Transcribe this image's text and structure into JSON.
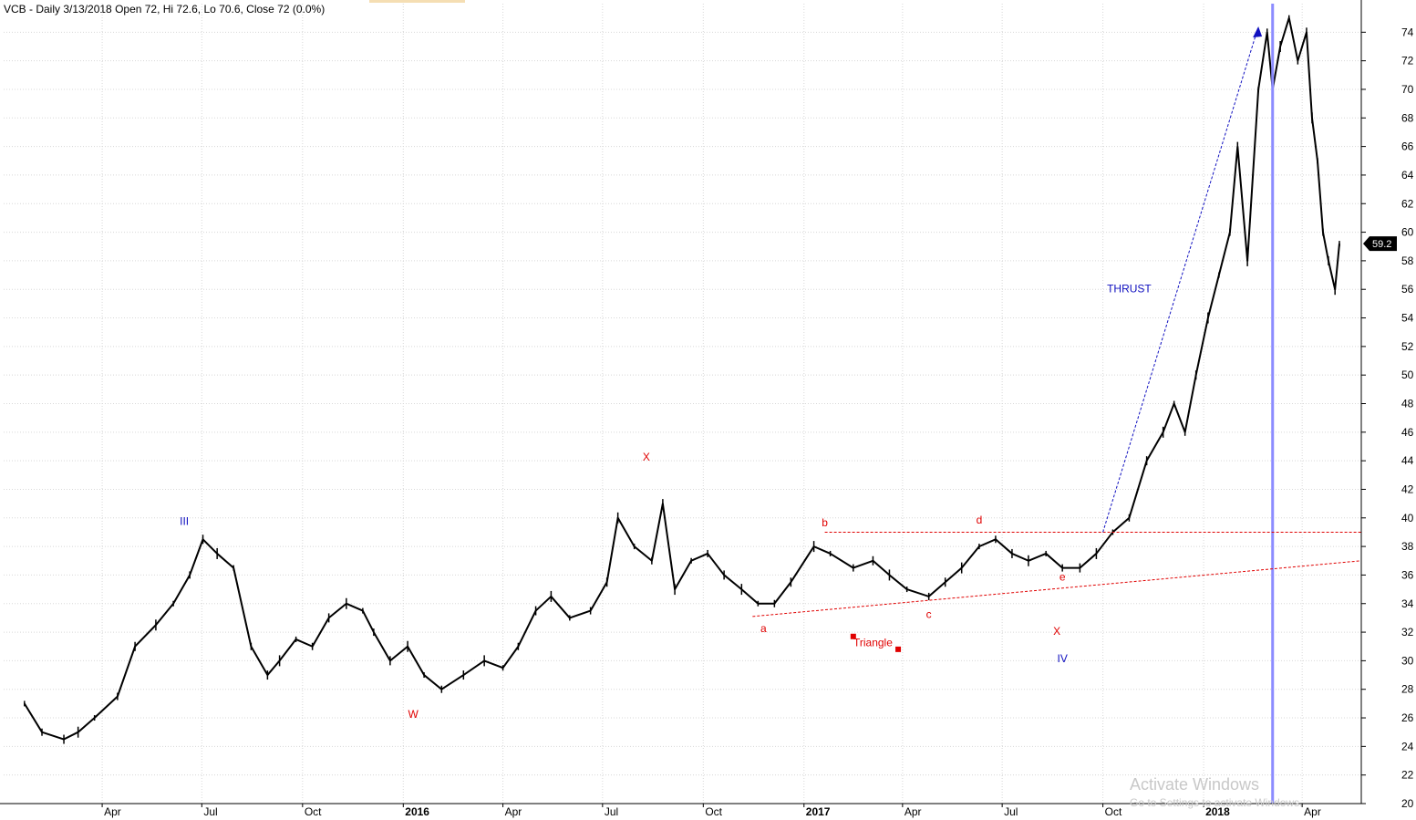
{
  "header": {
    "info": "VCB - Daily 3/13/2018 Open 72, Hi 72.6, Lo 70.6, Close 72 (0.0%)"
  },
  "watermark": {
    "line1": "Activate Windows",
    "line2": "Go to Settings to activate Windows."
  },
  "chart_data": {
    "type": "line",
    "symbol": "VCB",
    "interval": "Daily",
    "ylim": [
      20,
      76
    ],
    "grid": true,
    "y_ticks": [
      20,
      22,
      24,
      26,
      28,
      30,
      32,
      34,
      36,
      38,
      40,
      42,
      44,
      46,
      48,
      50,
      52,
      54,
      56,
      58,
      60,
      62,
      64,
      66,
      68,
      70,
      72,
      74
    ],
    "x_ticks": [
      {
        "label": "Apr",
        "date": "2015-04-01",
        "bold": false
      },
      {
        "label": "Jul",
        "date": "2015-07-01",
        "bold": false
      },
      {
        "label": "Oct",
        "date": "2015-10-01",
        "bold": false
      },
      {
        "label": "2016",
        "date": "2016-01-01",
        "bold": true
      },
      {
        "label": "Apr",
        "date": "2016-04-01",
        "bold": false
      },
      {
        "label": "Jul",
        "date": "2016-07-01",
        "bold": false
      },
      {
        "label": "Oct",
        "date": "2016-10-01",
        "bold": false
      },
      {
        "label": "2017",
        "date": "2017-01-01",
        "bold": true
      },
      {
        "label": "Apr",
        "date": "2017-04-01",
        "bold": false
      },
      {
        "label": "Jul",
        "date": "2017-07-01",
        "bold": false
      },
      {
        "label": "Oct",
        "date": "2017-10-01",
        "bold": false
      },
      {
        "label": "2018",
        "date": "2018-01-01",
        "bold": true
      },
      {
        "label": "Apr",
        "date": "2018-04-01",
        "bold": false
      }
    ],
    "series": [
      {
        "x": [
          "2015-01-20",
          "2015-02-05",
          "2015-02-25",
          "2015-03-10",
          "2015-03-25",
          "2015-04-15",
          "2015-05-01",
          "2015-05-20",
          "2015-06-05",
          "2015-06-20",
          "2015-07-02",
          "2015-07-15",
          "2015-07-30",
          "2015-08-15",
          "2015-08-30",
          "2015-09-10",
          "2015-09-25",
          "2015-10-10",
          "2015-10-25",
          "2015-11-10",
          "2015-11-25",
          "2015-12-05",
          "2015-12-20",
          "2016-01-05",
          "2016-01-20",
          "2016-02-05",
          "2016-02-25",
          "2016-03-15",
          "2016-04-01",
          "2016-04-15",
          "2016-05-01",
          "2016-05-15",
          "2016-06-01",
          "2016-06-20",
          "2016-07-05",
          "2016-07-15",
          "2016-07-30",
          "2016-08-15",
          "2016-08-25",
          "2016-09-05",
          "2016-09-20",
          "2016-10-05",
          "2016-10-20",
          "2016-11-05",
          "2016-11-20",
          "2016-12-05",
          "2016-12-20",
          "2017-01-10",
          "2017-01-25",
          "2017-02-15",
          "2017-03-05",
          "2017-03-20",
          "2017-04-05",
          "2017-04-25",
          "2017-05-10",
          "2017-05-25",
          "2017-06-10",
          "2017-06-25",
          "2017-07-10",
          "2017-07-25",
          "2017-08-10",
          "2017-08-25",
          "2017-09-10",
          "2017-09-25",
          "2017-10-10",
          "2017-10-25",
          "2017-11-10",
          "2017-11-25",
          "2017-12-05",
          "2017-12-15",
          "2017-12-25",
          "2018-01-05",
          "2018-01-15",
          "2018-01-25",
          "2018-02-01",
          "2018-02-10",
          "2018-02-20",
          "2018-02-28",
          "2018-03-05",
          "2018-03-12",
          "2018-03-20",
          "2018-03-28",
          "2018-04-05",
          "2018-04-10",
          "2018-04-15",
          "2018-04-20",
          "2018-04-25",
          "2018-05-01",
          "2018-05-05"
        ],
        "close": [
          27,
          25,
          24.5,
          25,
          26,
          27.5,
          31,
          32.5,
          34,
          36,
          38.5,
          37.5,
          36.5,
          31,
          29,
          30,
          31.5,
          31,
          33,
          34,
          33.5,
          32,
          30,
          31,
          29,
          28,
          29,
          30,
          29.5,
          31,
          33.5,
          34.5,
          33,
          33.5,
          35.5,
          40,
          38,
          37,
          41,
          35,
          37,
          37.5,
          36,
          35,
          34,
          34,
          35.5,
          38,
          37.5,
          36.5,
          37,
          36,
          35,
          34.5,
          35.5,
          36.5,
          38,
          38.5,
          37.5,
          37,
          37.5,
          36.5,
          36.5,
          37.5,
          39,
          40,
          44,
          46,
          48,
          46,
          50,
          54,
          57,
          60,
          66,
          58,
          70,
          74,
          70,
          73,
          75,
          72,
          74,
          68,
          65,
          60,
          58,
          56,
          59.2
        ]
      }
    ],
    "last_price": "59.2",
    "annotations": [
      {
        "text": "III",
        "date": "2015-06-15",
        "value": 39.5,
        "color": "#1010c0"
      },
      {
        "text": "W",
        "date": "2016-01-10",
        "value": 26.0,
        "color": "#e00000"
      },
      {
        "text": "X",
        "date": "2016-08-10",
        "value": 44.0,
        "color": "#e00000"
      },
      {
        "text": "a",
        "date": "2016-11-25",
        "value": 32.0,
        "color": "#e00000"
      },
      {
        "text": "b",
        "date": "2017-01-20",
        "value": 39.4,
        "color": "#e00000"
      },
      {
        "text": "Triangle",
        "date": "2017-03-05",
        "value": 31.0,
        "color": "#e00000"
      },
      {
        "text": "c",
        "date": "2017-04-25",
        "value": 33.0,
        "color": "#e00000"
      },
      {
        "text": "d",
        "date": "2017-06-10",
        "value": 39.6,
        "color": "#e00000"
      },
      {
        "text": "e",
        "date": "2017-08-25",
        "value": 35.6,
        "color": "#e00000"
      },
      {
        "text": "X",
        "date": "2017-08-20",
        "value": 31.8,
        "color": "#e00000"
      },
      {
        "text": "IV",
        "date": "2017-08-25",
        "value": 29.9,
        "color": "#1010c0"
      },
      {
        "text": "THRUST",
        "date": "2017-10-25",
        "value": 55.8,
        "color": "#1010c0"
      }
    ],
    "lines": [
      {
        "name": "triangle-upper-line",
        "from": {
          "date": "2017-01-20",
          "value": 39
        },
        "to": {
          "date": "2018-05-25",
          "value": 39
        },
        "color": "#e00000",
        "dashed": true
      },
      {
        "name": "triangle-lower-line",
        "from": {
          "date": "2016-11-15",
          "value": 33.1
        },
        "to": {
          "date": "2018-05-25",
          "value": 37
        },
        "color": "#e00000",
        "dashed": true
      },
      {
        "name": "thrust-line",
        "from": {
          "date": "2017-10-01",
          "value": 39
        },
        "to": {
          "date": "2018-02-20",
          "value": 74.4
        },
        "color": "#1010c0",
        "dashed": true
      }
    ],
    "markers": [
      {
        "name": "triangle-marker-1",
        "date": "2017-02-15",
        "value": 31.7,
        "color": "#e00000"
      },
      {
        "name": "triangle-marker-2",
        "date": "2017-03-28",
        "value": 30.8,
        "color": "#e00000"
      }
    ],
    "cursor_date": "2018-03-05"
  }
}
